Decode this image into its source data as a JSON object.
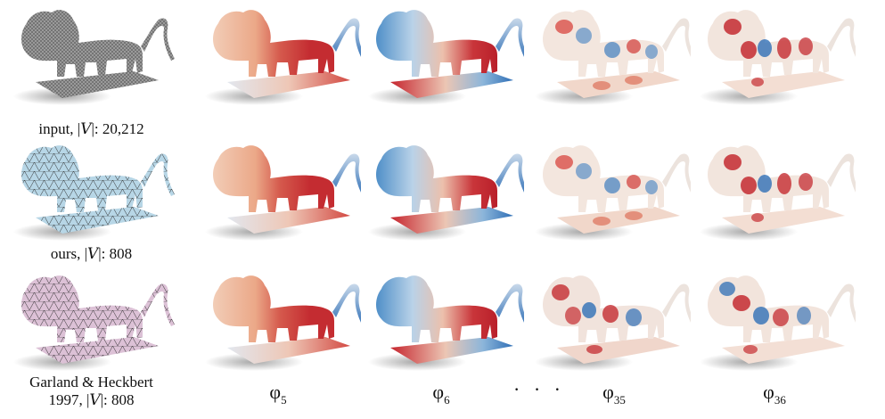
{
  "colors": {
    "negative": "#2f6fb6",
    "neutral": "#f3ece6",
    "positive": "#c0222c",
    "input_mesh": "#9a9a9a",
    "ours_mesh": "#b7d6e6",
    "garland_mesh": "#dcc1d6",
    "wire": "#2b2b2b"
  },
  "rows": [
    {
      "id": "input",
      "label_pre": "input, |",
      "label_cal": "V",
      "label_post": "|: 20,212",
      "label_line2": ""
    },
    {
      "id": "ours",
      "label_pre": "ours, |",
      "label_cal": "V",
      "label_post": "|: 808",
      "label_line2": ""
    },
    {
      "id": "garland",
      "label_line1": "Garland & Heckbert",
      "label_pre": "1997, |",
      "label_cal": "V",
      "label_post": "|: 808"
    }
  ],
  "columns": [
    {
      "symbol": "φ",
      "sub": "5"
    },
    {
      "symbol": "φ",
      "sub": "6"
    },
    {
      "symbol": "φ",
      "sub": "35"
    },
    {
      "symbol": "φ",
      "sub": "36"
    }
  ],
  "ellipsis": "· · ·"
}
